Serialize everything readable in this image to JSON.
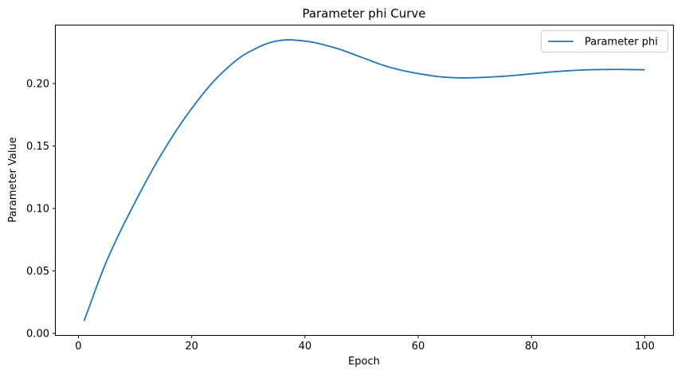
{
  "chart_data": {
    "type": "line",
    "title": "Parameter phi Curve",
    "xlabel": "Epoch",
    "ylabel": "Parameter Value",
    "xlim": [
      -4.0,
      105.0
    ],
    "ylim": [
      -0.0013,
      0.2465
    ],
    "xticks": [
      0,
      20,
      40,
      60,
      80,
      100
    ],
    "xtick_labels": [
      "0",
      "20",
      "40",
      "60",
      "80",
      "100"
    ],
    "yticks": [
      0.0,
      0.05,
      0.1,
      0.15,
      0.2
    ],
    "ytick_labels": [
      "0.00",
      "0.05",
      "0.10",
      "0.15",
      "0.20"
    ],
    "grid": false,
    "legend_position": "top-right",
    "series": [
      {
        "name": "Parameter phi",
        "color": "#1f77b4",
        "x": [
          1,
          5,
          10,
          15,
          20,
          25,
          30,
          35,
          37,
          40,
          45,
          50,
          55,
          60,
          65,
          68,
          70,
          75,
          80,
          85,
          90,
          95,
          100
        ],
        "y": [
          0.01,
          0.058,
          0.105,
          0.146,
          0.18,
          0.207,
          0.225,
          0.234,
          0.235,
          0.234,
          0.229,
          0.221,
          0.213,
          0.208,
          0.205,
          0.2045,
          0.2047,
          0.2058,
          0.2078,
          0.2098,
          0.211,
          0.2113,
          0.211
        ]
      }
    ]
  }
}
